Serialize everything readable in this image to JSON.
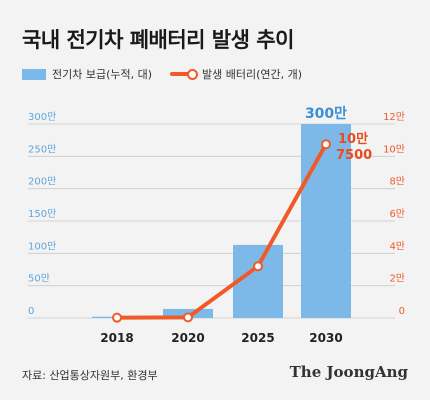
{
  "title": "국내 전기차 폐배터리 발생 추이",
  "legend": {
    "bar": "전기차 보급(누적, 대)",
    "line": "발생 배터리(연간, 개)"
  },
  "source": "자료: 산업통상자원부, 환경부",
  "brand": "The JoongAng",
  "colors": {
    "bar": "#7db9e8",
    "line": "#f05a28",
    "background": "#f3f3f3"
  },
  "chart_data": {
    "type": "bar+line",
    "categories": [
      "2018",
      "2020",
      "2025",
      "2030"
    ],
    "series": [
      {
        "name": "전기차 보급(누적, 대)",
        "type": "bar",
        "axis": "left",
        "values": [
          2,
          14,
          113,
          300
        ]
      },
      {
        "name": "발생 배터리(연간, 개)",
        "type": "line",
        "axis": "right",
        "values": [
          0.02,
          0.04,
          3.2,
          10.75
        ]
      }
    ],
    "left_axis": {
      "ticks": [
        "0",
        "50만",
        "100만",
        "150만",
        "200만",
        "250만",
        "300만"
      ],
      "ylim": [
        0,
        300
      ],
      "unit": "만 대"
    },
    "right_axis": {
      "ticks": [
        "0",
        "2만",
        "4만",
        "6만",
        "8만",
        "10만",
        "12만"
      ],
      "ylim": [
        0,
        12
      ],
      "unit": "만 개"
    },
    "annotations": {
      "bar_last": "300만",
      "line_last_1": "10만",
      "line_last_2": "7500"
    },
    "grid": true
  }
}
